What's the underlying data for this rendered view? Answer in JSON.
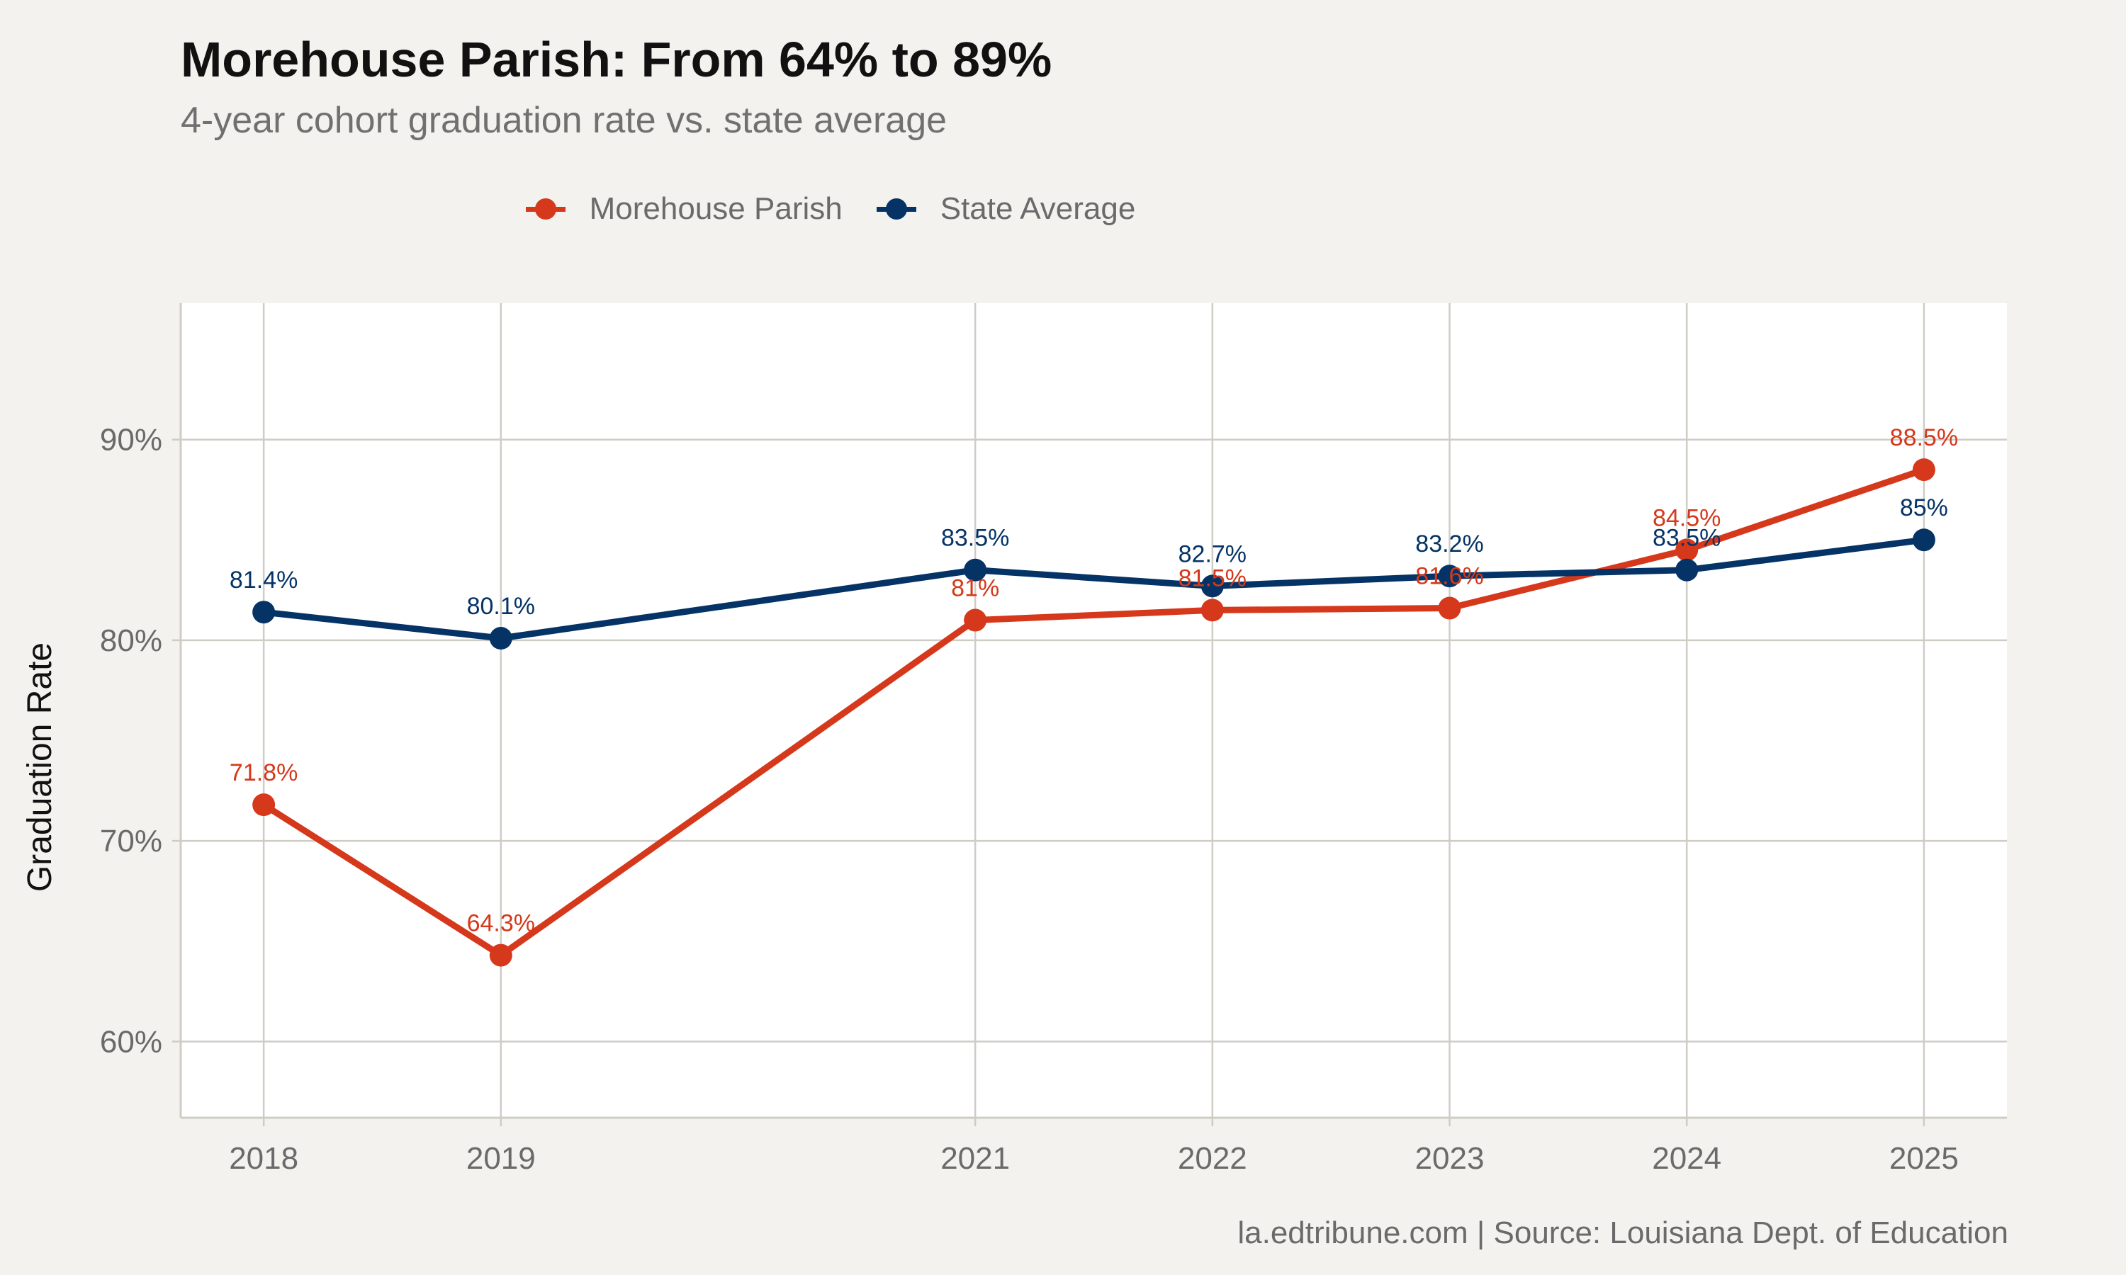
{
  "title": "Morehouse Parish: From 64% to 89%",
  "subtitle": "4-year cohort graduation rate vs. state average",
  "caption": "la.edtribune.com | Source: Louisiana Dept. of Education",
  "colors": {
    "background": "#f4f2ee",
    "panel": "#ffffff",
    "grid": "#cfccc6",
    "morehouse": "#d5381a",
    "state": "#053366"
  },
  "legend": {
    "items": [
      {
        "label": "Morehouse Parish",
        "color": "#d5381a"
      },
      {
        "label": "State Average",
        "color": "#053366"
      }
    ]
  },
  "chart_data": {
    "type": "line",
    "title": "Morehouse Parish: From 64% to 89%",
    "subtitle": "4-year cohort graduation rate vs. state average",
    "xlabel": "",
    "ylabel": "Graduation Rate",
    "x": [
      2018,
      2019,
      2021,
      2022,
      2023,
      2024,
      2025
    ],
    "xticks": [
      "2018",
      "2019",
      "2021",
      "2022",
      "2023",
      "2024",
      "2025"
    ],
    "yticks": [
      "60%",
      "70%",
      "80%",
      "90%"
    ],
    "ytick_values": [
      60,
      70,
      80,
      90
    ],
    "xlim": [
      2017.65,
      2025.35
    ],
    "ylim": [
      56.2,
      96.8
    ],
    "grid": true,
    "legend_position": "top",
    "series": [
      {
        "name": "Morehouse Parish",
        "color": "#d5381a",
        "values": [
          71.8,
          64.3,
          81,
          81.5,
          81.6,
          84.5,
          88.5
        ],
        "labels": [
          "71.8%",
          "64.3%",
          "81%",
          "81.5%",
          "81.6%",
          "84.5%",
          "88.5%"
        ]
      },
      {
        "name": "State Average",
        "color": "#053366",
        "values": [
          81.4,
          80.1,
          83.5,
          82.7,
          83.2,
          83.5,
          85
        ],
        "labels": [
          "81.4%",
          "80.1%",
          "83.5%",
          "82.7%",
          "83.2%",
          "83.5%",
          "85%"
        ]
      }
    ]
  }
}
